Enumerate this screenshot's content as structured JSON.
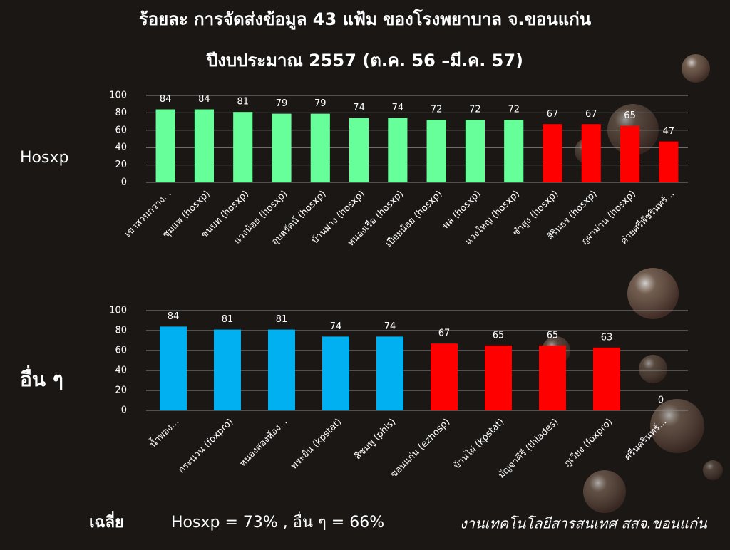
{
  "slide": {
    "title_lines": [
      "ร้อยละ การจัดส่งข้อมูล 43 แฟ้ม ของโรงพยาบาล จ.ขอนแก่น",
      "ปีงบประมาณ 2557 (ต.ค. 56 –มี.ค. 57)"
    ],
    "average_label": "เฉลี่ย",
    "average_text": "Hosxp = 73%  ,  อื่น ๆ  = 66%",
    "credit": "งานเทคโนโลยีสารสนเทศ สสจ.ขอนแก่น"
  },
  "chart_data": [
    {
      "type": "bar",
      "side_label": "Hosxp",
      "categories": [
        "เขาสวนกวาง...",
        "ชุมแพ (hosxp)",
        "ชนบท (hosxp)",
        "แวงน้อย (hosxp)",
        "อุบลรัตน์ (hosxp)",
        "บ้านฝาง (hosxp)",
        "หนองเรือ (hosxp)",
        "เปือยน้อย (hosxp)",
        "พล (hosxp)",
        "แวงใหญ่ (hosxp)",
        "ซำสูง (hosxp)",
        "สิรินธร (hosxp)",
        "ภูผาม่าน (hosxp)",
        "ค่ายศรีพัชรินทร์..."
      ],
      "values": [
        84,
        84,
        81,
        79,
        79,
        74,
        74,
        72,
        72,
        72,
        67,
        67,
        65,
        47
      ],
      "colors": [
        "#66ff99",
        "#66ff99",
        "#66ff99",
        "#66ff99",
        "#66ff99",
        "#66ff99",
        "#66ff99",
        "#66ff99",
        "#66ff99",
        "#66ff99",
        "#ff0000",
        "#ff0000",
        "#ff0000",
        "#ff0000"
      ],
      "ylim": [
        0,
        100
      ],
      "yticks": [
        0,
        20,
        40,
        60,
        80,
        100
      ],
      "grid": true
    },
    {
      "type": "bar",
      "side_label": "อื่น ๆ",
      "categories": [
        "น้ำพอง...",
        "กระนวน (foxpro)",
        "หนองสองห้อง...",
        "พระยืน (kpstat)",
        "สีชมพู (phis)",
        "ขอนแก่น (ezhosp)",
        "บ้านไผ่ (kpstat)",
        "มัญจาคีรี (thiades)",
        "ภูเวียง (foxpro)",
        "ศรีนครินทร์..."
      ],
      "values": [
        84,
        81,
        81,
        74,
        74,
        67,
        65,
        65,
        63,
        0
      ],
      "colors": [
        "#00b0f0",
        "#00b0f0",
        "#00b0f0",
        "#00b0f0",
        "#00b0f0",
        "#ff0000",
        "#ff0000",
        "#ff0000",
        "#ff0000",
        "#ff0000"
      ],
      "ylim": [
        0,
        100
      ],
      "yticks": [
        0,
        20,
        40,
        60,
        80,
        100
      ],
      "grid": true
    }
  ]
}
